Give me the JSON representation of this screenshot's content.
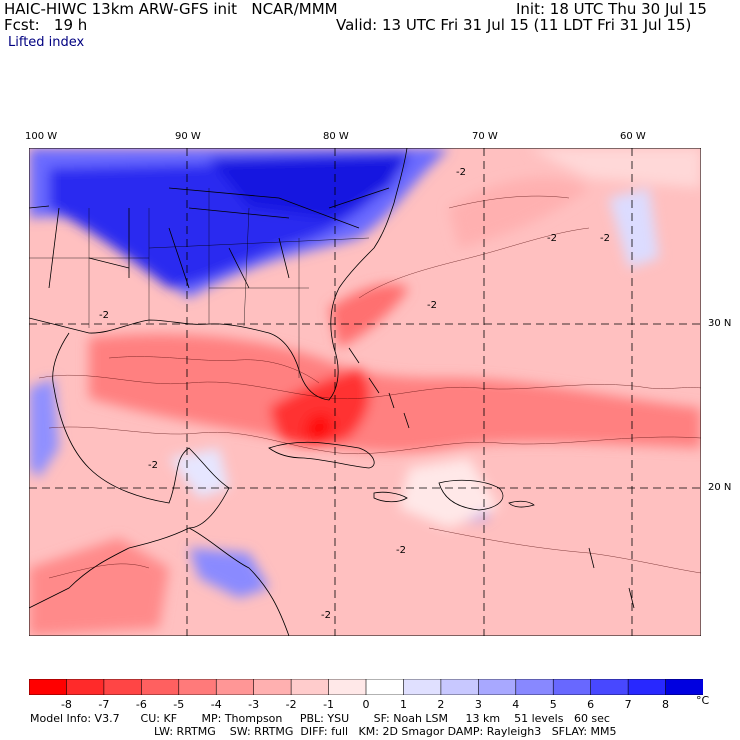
{
  "header": {
    "title_left": "HAIC-HIWC 13km ARW-GFS init   NCAR/MMM",
    "forecast": "Fcst:   19 h",
    "init": "Init: 18 UTC Thu 30 Jul 15",
    "valid": "Valid: 13 UTC Fri 31 Jul 15 (11 LDT Fri 31 Jul 15)",
    "field": "Lifted index"
  },
  "map": {
    "lon_ticks": [
      "100 W",
      "90 W",
      "80 W",
      "70 W",
      "60 W"
    ],
    "lat_ticks": [
      "30 N",
      "20 N"
    ],
    "contour_labels": [
      "-2",
      "-2",
      "-2",
      "-2",
      "-2",
      "-2",
      "-2",
      "-2"
    ]
  },
  "colorbar": {
    "labels": [
      "-8",
      "-7",
      "-6",
      "-5",
      "-4",
      "-3",
      "-2",
      "-1",
      "0",
      "1",
      "2",
      "3",
      "4",
      "5",
      "6",
      "7",
      "8"
    ],
    "unit": "°C",
    "colors": [
      "#ff0000",
      "#ff2a2a",
      "#ff4545",
      "#ff6060",
      "#ff7a7a",
      "#ff9696",
      "#ffb0b0",
      "#ffcccc",
      "#ffe8e8",
      "#ffffff",
      "#e0e0ff",
      "#c8c8ff",
      "#a8a8ff",
      "#8888ff",
      "#6868ff",
      "#4848ff",
      "#2828ff",
      "#0000e0"
    ]
  },
  "footer": {
    "line1": "Model Info: V3.7      CU: KF       MP: Thompson     PBL: YSU       SF: Noah LSM     13 km    51 levels   60 sec",
    "line2": "LW: RRTMG    SW: RRTMG  DIFF: full   KM: 2D Smagor DAMP: Rayleigh3   SFLAY: MM5"
  }
}
